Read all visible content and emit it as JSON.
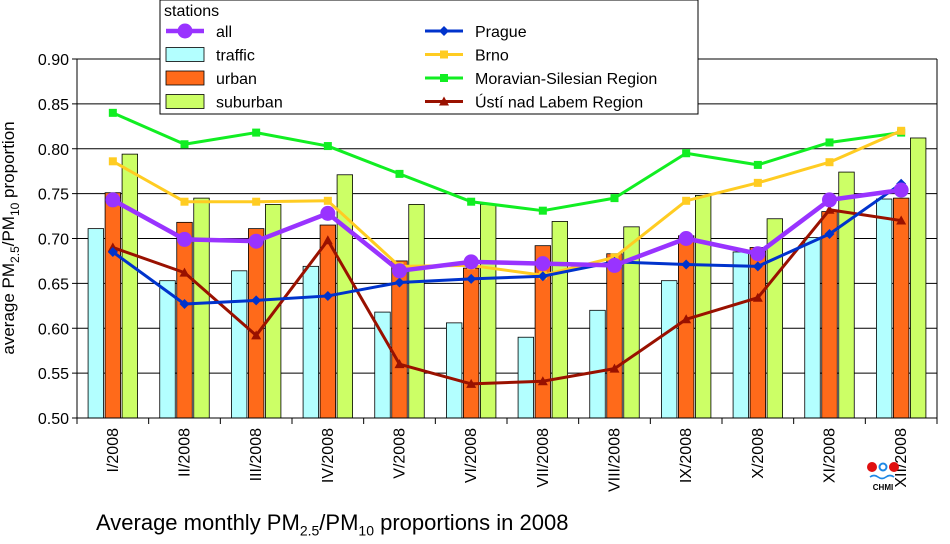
{
  "chart_data": {
    "type": "bar",
    "caption": {
      "prefix": "Average monthly PM",
      "sub1": "2.5",
      "mid": "/PM",
      "sub2": "10",
      "suffix": " proportions in 2008"
    },
    "ylabel": {
      "prefix": "average PM",
      "sub1": "2.5",
      "mid": "/PM",
      "sub2": "10",
      "suffix": " proportion"
    },
    "ylim": [
      0.5,
      0.9
    ],
    "yticks": [
      "0.50",
      "0.55",
      "0.60",
      "0.65",
      "0.70",
      "0.75",
      "0.80",
      "0.85",
      "0.90"
    ],
    "grid": true,
    "legend_placement": "top",
    "legend_title": "stations",
    "logo_text": "CHMI",
    "categories": [
      "I/2008",
      "II/2008",
      "III/2008",
      "IV/2008",
      "V/2008",
      "VI/2008",
      "VII/2008",
      "VIII/2008",
      "IX/2008",
      "X/2008",
      "XI/2008",
      "XII/2008"
    ],
    "bar_series": [
      {
        "name": "traffic",
        "color": "#b3ffff",
        "values": [
          0.711,
          0.653,
          0.664,
          0.669,
          0.618,
          0.606,
          0.59,
          0.62,
          0.653,
          0.685,
          0.701,
          0.744
        ]
      },
      {
        "name": "urban",
        "color": "#ff6a1a",
        "values": [
          0.751,
          0.718,
          0.711,
          0.715,
          0.675,
          0.667,
          0.692,
          0.683,
          0.703,
          0.69,
          0.73,
          0.745
        ]
      },
      {
        "name": "suburban",
        "color": "#ccff66",
        "values": [
          0.794,
          0.745,
          0.738,
          0.771,
          0.738,
          0.738,
          0.719,
          0.713,
          0.748,
          0.722,
          0.774,
          0.812
        ]
      }
    ],
    "line_series": [
      {
        "name": "all",
        "color": "#9933ff",
        "marker": "circle",
        "values": [
          0.743,
          0.699,
          0.697,
          0.728,
          0.664,
          0.674,
          0.672,
          0.67,
          0.7,
          0.683,
          0.743,
          0.754
        ]
      },
      {
        "name": "Prague",
        "color": "#0033cc",
        "marker": "diamond",
        "values": [
          0.685,
          0.627,
          0.631,
          0.636,
          0.651,
          0.655,
          0.658,
          0.674,
          0.671,
          0.669,
          0.705,
          0.761
        ]
      },
      {
        "name": "Brno",
        "color": "#ffcc22",
        "marker": "square",
        "values": [
          0.786,
          0.741,
          0.741,
          0.742,
          0.669,
          0.67,
          0.659,
          0.679,
          0.742,
          0.762,
          0.785,
          0.82
        ]
      },
      {
        "name": "Moravian-Silesian Region",
        "color": "#11ee22",
        "marker": "square",
        "values": [
          0.84,
          0.805,
          0.818,
          0.803,
          0.772,
          0.741,
          0.731,
          0.745,
          0.795,
          0.782,
          0.807,
          0.818
        ]
      },
      {
        "name": "Ústí nad Labem Region",
        "color": "#991100",
        "marker": "triangle",
        "values": [
          0.69,
          0.662,
          0.592,
          0.698,
          0.56,
          0.538,
          0.541,
          0.555,
          0.61,
          0.634,
          0.732,
          0.72
        ]
      }
    ]
  }
}
